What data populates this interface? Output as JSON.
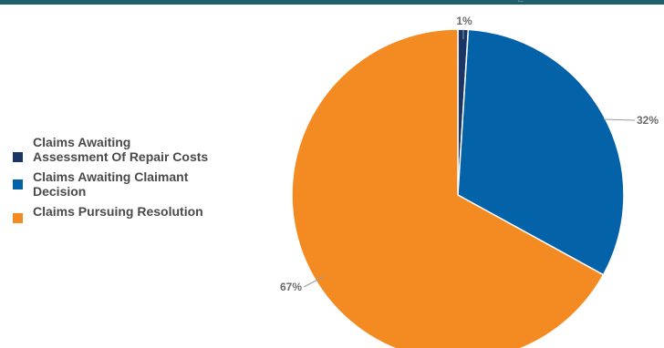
{
  "colors": {
    "header_band": "#1d5f6b",
    "leader_line": "#9a9a9a",
    "legend_text": "#4a4a4a"
  },
  "chart_data": {
    "type": "pie",
    "title": "",
    "slices": [
      {
        "label": "Claims Awaiting Assessment Of Repair Costs",
        "value": 1,
        "display": "1%",
        "color": "#1b3564"
      },
      {
        "label": "Claims Awaiting Claimant Decision",
        "value": 32,
        "display": "32%",
        "color": "#0462a8"
      },
      {
        "label": "Claims Pursuing Resolution",
        "value": 67,
        "display": "67%",
        "color": "#f38b22"
      }
    ],
    "start_angle": "12 o'clock",
    "direction": "clockwise",
    "legend": {
      "position": "left",
      "items": [
        "Claims Awaiting Assessment Of Repair Costs",
        "Claims Awaiting Claimant Decision",
        "Claims Pursuing Resolution"
      ]
    }
  }
}
